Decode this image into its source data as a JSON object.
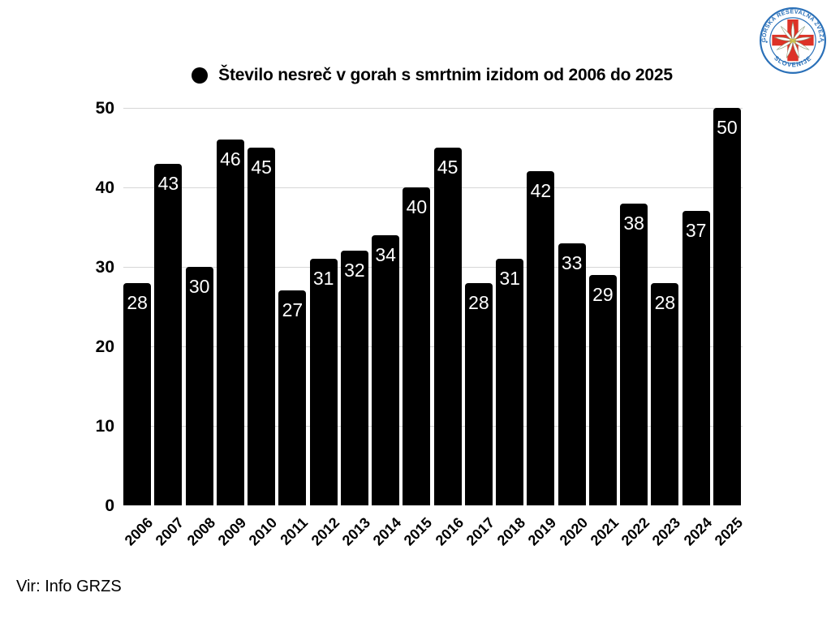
{
  "chart_data": {
    "type": "bar",
    "title": "Število nesreč v gorah s smrtnim izidom od 2006 do 2025",
    "categories": [
      "2006",
      "2007",
      "2008",
      "2009",
      "2010",
      "2011",
      "2012",
      "2013",
      "2014",
      "2015",
      "2016",
      "2017",
      "2018",
      "2019",
      "2020",
      "2021",
      "2022",
      "2023",
      "2024",
      "2025"
    ],
    "values": [
      28,
      43,
      30,
      46,
      45,
      27,
      31,
      32,
      34,
      40,
      45,
      28,
      31,
      42,
      33,
      29,
      38,
      28,
      37,
      50
    ],
    "xlabel": "",
    "ylabel": "",
    "ylim": [
      0,
      50
    ],
    "yticks": [
      0,
      10,
      20,
      30,
      40,
      50
    ],
    "grid": true,
    "legend_marker": "filled-circle",
    "bar_color": "#000000",
    "value_label_color": "#ffffff",
    "gridline_color": "#d6d6d6",
    "title_color": "#000000",
    "axis_label_color": "#000000"
  },
  "source": {
    "text": "Vir: Info GRZS"
  },
  "logo": {
    "top_text": "GORSKA REŠEVALNA ZVEZA",
    "bottom_text": "SLOVENIJE",
    "ring_color": "#2a70b8",
    "cross_color": "#dd3227",
    "petal_outline_color": "#8a9a7a",
    "flower_center_color": "#d8c94f"
  }
}
